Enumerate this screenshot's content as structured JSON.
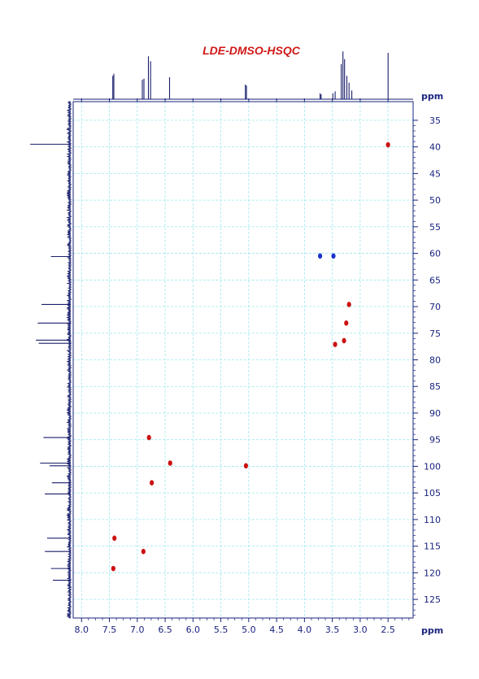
{
  "chart_data": {
    "type": "scatter",
    "title": "LDE-DMSO-HSQC",
    "xlabel": "ppm",
    "ylabel": "ppm",
    "xlim": [
      8.15,
      2.05
    ],
    "ylim": [
      31.5,
      128.5
    ],
    "x_axis_reversed": true,
    "y_axis_reversed": true,
    "x_ticks": [
      "8.0",
      "7.5",
      "7.0",
      "6.5",
      "6.0",
      "5.5",
      "5.0",
      "4.5",
      "4.0",
      "3.5",
      "3.0",
      "2.5"
    ],
    "y_ticks": [
      "35",
      "40",
      "45",
      "50",
      "55",
      "60",
      "65",
      "70",
      "75",
      "80",
      "85",
      "90",
      "95",
      "100",
      "105",
      "110",
      "115",
      "120",
      "125"
    ],
    "grid": true,
    "series": [
      {
        "color": "#cc1111",
        "points": [
          {
            "x": 2.5,
            "y": 39.6
          },
          {
            "x": 3.2,
            "y": 69.6
          },
          {
            "x": 3.25,
            "y": 73.1
          },
          {
            "x": 3.29,
            "y": 76.4
          },
          {
            "x": 3.45,
            "y": 77.1
          },
          {
            "x": 6.79,
            "y": 94.6
          },
          {
            "x": 6.41,
            "y": 99.4
          },
          {
            "x": 5.05,
            "y": 99.9
          },
          {
            "x": 6.74,
            "y": 103.1
          },
          {
            "x": 7.41,
            "y": 113.5
          },
          {
            "x": 6.89,
            "y": 116.0
          },
          {
            "x": 7.43,
            "y": 119.2
          }
        ]
      },
      {
        "color": "#1a33cc",
        "points": [
          {
            "x": 3.72,
            "y": 60.5
          },
          {
            "x": 3.48,
            "y": 60.5
          }
        ]
      }
    ],
    "projection_1h": [
      {
        "x": 7.44,
        "h": 0.48
      },
      {
        "x": 7.42,
        "h": 0.52
      },
      {
        "x": 6.91,
        "h": 0.4
      },
      {
        "x": 6.88,
        "h": 0.42
      },
      {
        "x": 6.8,
        "h": 0.88
      },
      {
        "x": 6.76,
        "h": 0.78
      },
      {
        "x": 6.42,
        "h": 0.45
      },
      {
        "x": 5.06,
        "h": 0.3
      },
      {
        "x": 5.04,
        "h": 0.28
      },
      {
        "x": 3.72,
        "h": 0.12
      },
      {
        "x": 3.7,
        "h": 0.1
      },
      {
        "x": 3.49,
        "h": 0.12
      },
      {
        "x": 3.45,
        "h": 0.16
      },
      {
        "x": 3.34,
        "h": 0.72
      },
      {
        "x": 3.31,
        "h": 0.98
      },
      {
        "x": 3.28,
        "h": 0.82
      },
      {
        "x": 3.24,
        "h": 0.48
      },
      {
        "x": 3.2,
        "h": 0.34
      },
      {
        "x": 3.15,
        "h": 0.18
      },
      {
        "x": 2.5,
        "h": 0.95
      }
    ],
    "projection_13c": [
      {
        "y": 39.5,
        "w": 0.86
      },
      {
        "y": 60.6,
        "w": 0.42
      },
      {
        "y": 69.6,
        "w": 0.62
      },
      {
        "y": 73.1,
        "w": 0.7
      },
      {
        "y": 76.3,
        "w": 0.74
      },
      {
        "y": 76.9,
        "w": 0.68
      },
      {
        "y": 94.6,
        "w": 0.58
      },
      {
        "y": 99.4,
        "w": 0.65
      },
      {
        "y": 99.9,
        "w": 0.45
      },
      {
        "y": 103.1,
        "w": 0.4
      },
      {
        "y": 105.2,
        "w": 0.55
      },
      {
        "y": 113.5,
        "w": 0.5
      },
      {
        "y": 116.0,
        "w": 0.55
      },
      {
        "y": 119.2,
        "w": 0.42
      },
      {
        "y": 121.4,
        "w": 0.38
      }
    ]
  }
}
